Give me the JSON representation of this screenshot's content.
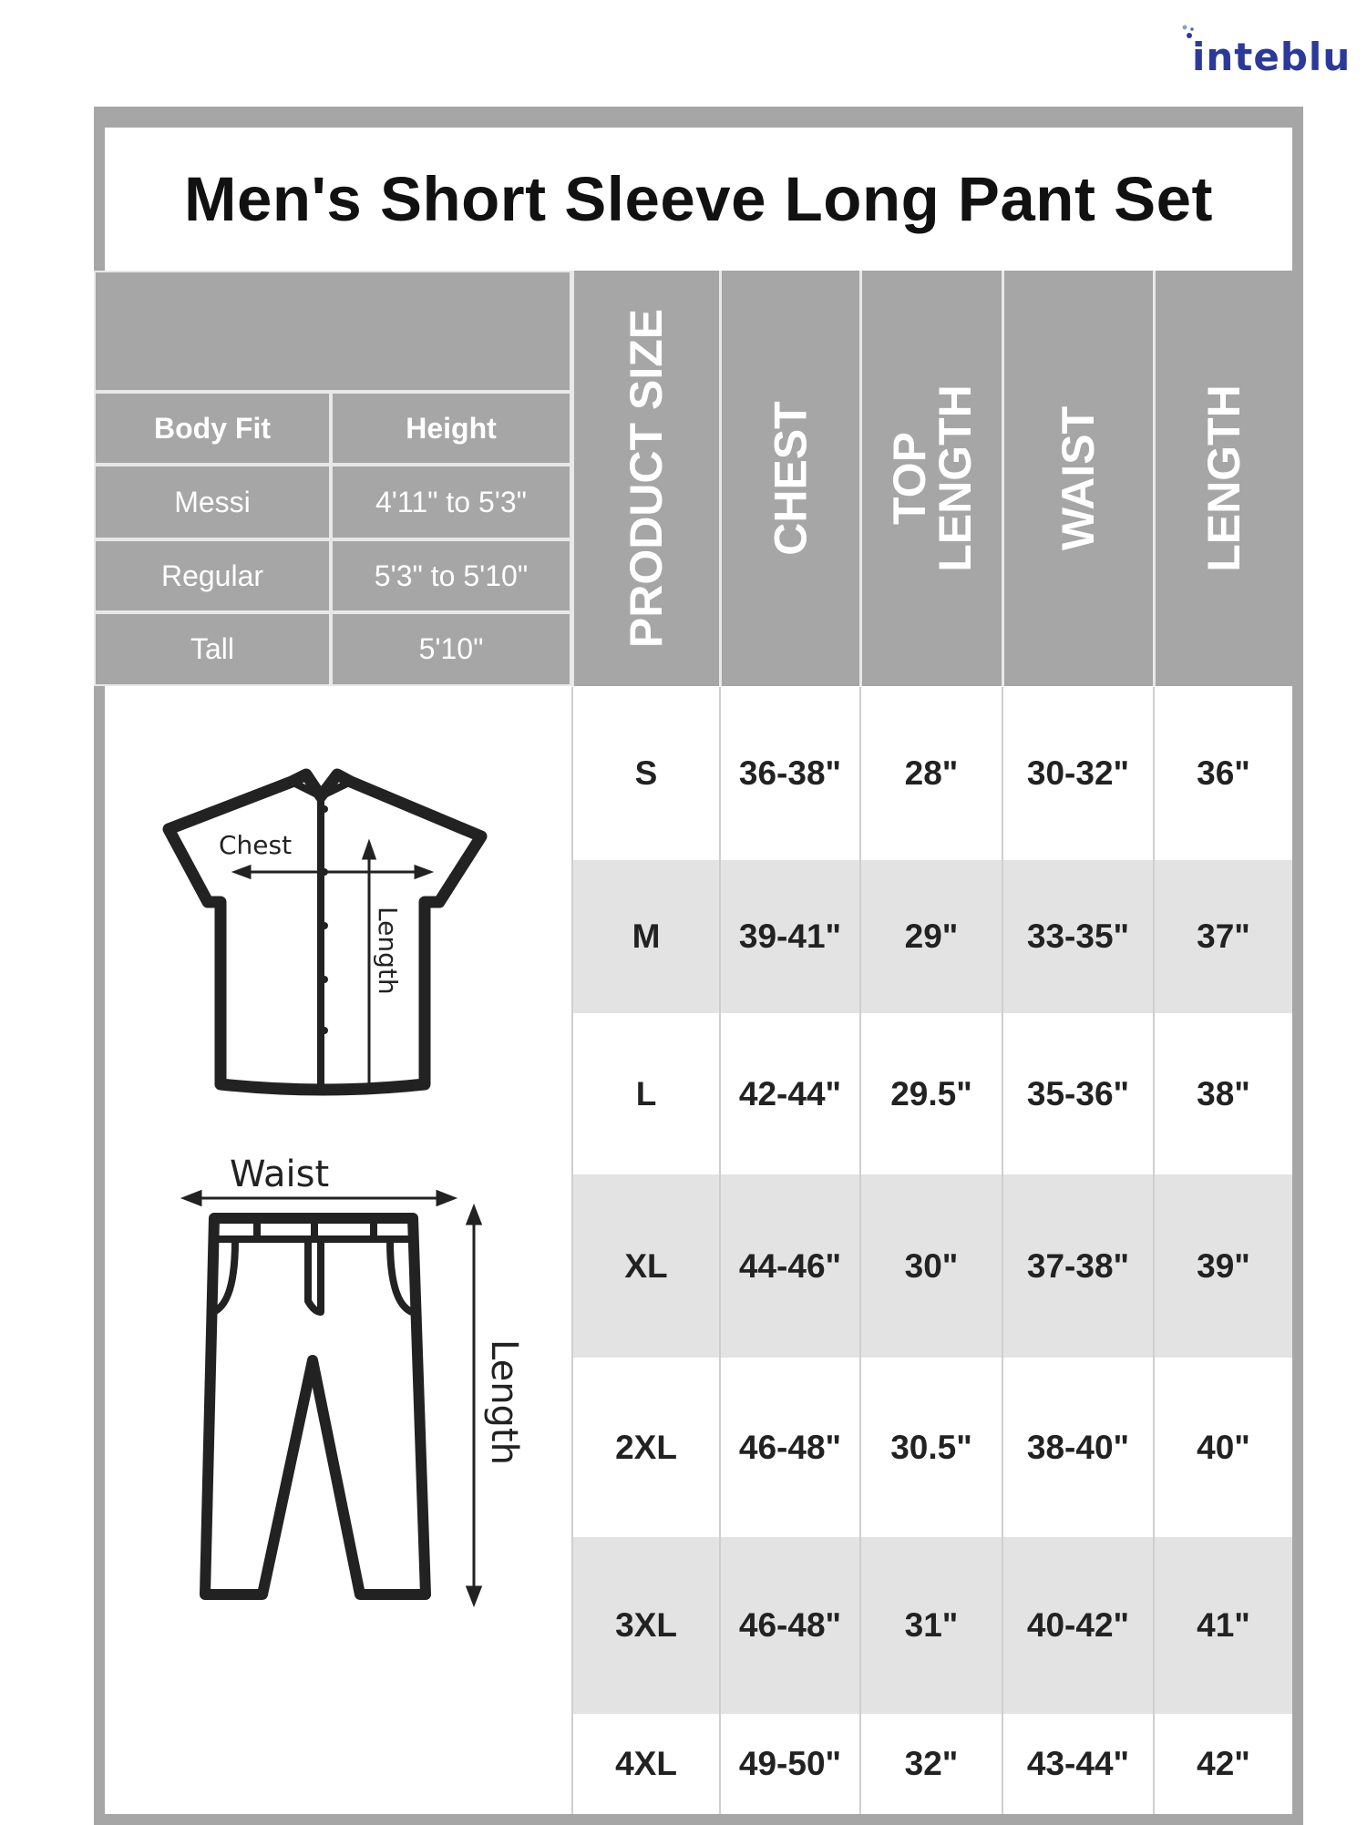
{
  "brand": {
    "logo_text": "inteblu",
    "color": "#2b3a9a"
  },
  "title": "Men's Short Sleeve Long Pant Set",
  "body_fit_table": {
    "headers": [
      "Body Fit",
      "Height"
    ],
    "rows": [
      [
        "Messi",
        "4'11\" to 5'3\""
      ],
      [
        "Regular",
        "5'3\" to 5'10\""
      ],
      [
        "Tall",
        "5'10\""
      ]
    ]
  },
  "size_table": {
    "headers": [
      "PRODUCT SIZE",
      "CHEST",
      "TOP LENGTH",
      "WAIST",
      "LENGTH"
    ],
    "rows": [
      [
        "S",
        "36-38\"",
        "28\"",
        "30-32\"",
        "36\""
      ],
      [
        "M",
        "39-41\"",
        "29\"",
        "33-35\"",
        "37\""
      ],
      [
        "L",
        "42-44\"",
        "29.5\"",
        "35-36\"",
        "38\""
      ],
      [
        "XL",
        "44-46\"",
        "30\"",
        "37-38\"",
        "39\""
      ],
      [
        "2XL",
        "46-48\"",
        "30.5\"",
        "38-40\"",
        "40\""
      ],
      [
        "3XL",
        "46-48\"",
        "31\"",
        "40-42\"",
        "41\""
      ],
      [
        "4XL",
        "49-50\"",
        "32\"",
        "43-44\"",
        "42\""
      ]
    ]
  },
  "illustration": {
    "shirt_labels": {
      "chest": "Chest",
      "length": "Length"
    },
    "pants_labels": {
      "waist": "Waist",
      "length": "Length"
    }
  },
  "colors": {
    "header_gray": "#a6a6a6",
    "row_shade": "#e3e3e3",
    "text": "#222222"
  }
}
